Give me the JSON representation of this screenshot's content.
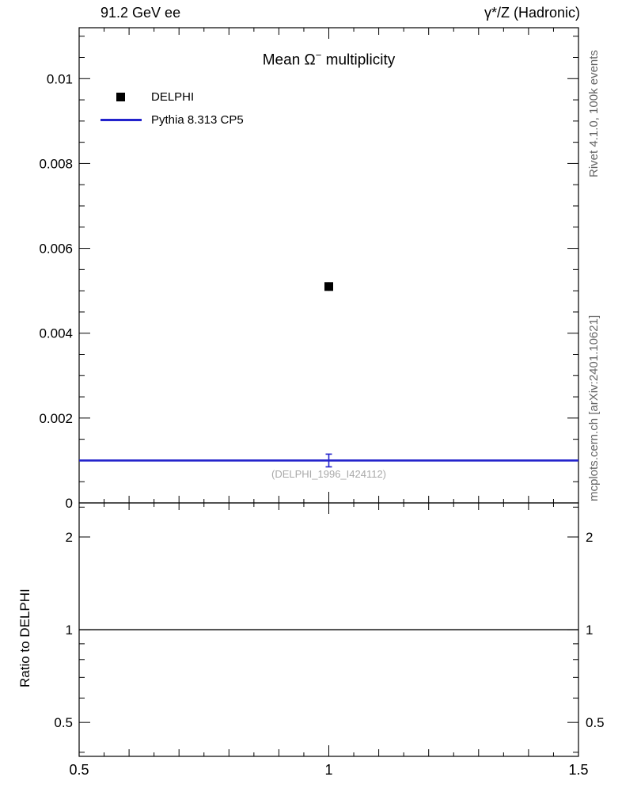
{
  "header": {
    "left": "91.2 GeV ee",
    "right": "γ*/Z (Hadronic)"
  },
  "main_panel": {
    "title_prefix": "Mean Ω",
    "title_sup": "−",
    "title_suffix": " multiplicity",
    "watermark": "(DELPHI_1996_I424112)",
    "legend": [
      {
        "label": "DELPHI"
      },
      {
        "label": "Pythia 8.313 CP5"
      }
    ]
  },
  "ratio_panel": {
    "ylabel": "Ratio to DELPHI"
  },
  "sidebar_right": {
    "top": "Rivet 4.1.0, 100k events",
    "bottom": "mcplots.cern.ch [arXiv:2401.10621]"
  },
  "chart_data": {
    "type": "scatter",
    "title": "Mean Ω⁻ multiplicity",
    "xlabel": "",
    "xlim": [
      0.5,
      1.5
    ],
    "xticks": {
      "major_values": [
        0.5,
        1,
        1.5
      ],
      "major_labels": [
        "0.5",
        "1",
        "1.5"
      ],
      "medium_step": 0.1,
      "minor_step": 0.05
    },
    "main": {
      "ylim": [
        0,
        0.0112
      ],
      "yticks": {
        "major_values": [
          0,
          0.002,
          0.004,
          0.006,
          0.008,
          0.01
        ],
        "major_labels": [
          "0",
          "0.002",
          "0.004",
          "0.006",
          "0.008",
          "0.01"
        ],
        "minor_step": 0.0005
      },
      "series": [
        {
          "name": "DELPHI",
          "type": "points",
          "color": "#000000",
          "marker": "filled-square",
          "marker_size": 11,
          "points": [
            {
              "x": 1,
              "y": 0.0051,
              "yerr": 0.0001
            }
          ]
        },
        {
          "name": "Pythia 8.313 CP5",
          "type": "line",
          "color": "#2222cc",
          "line_width": 2.6,
          "x": [
            0.5,
            1.5
          ],
          "y": [
            0.001,
            0.001
          ],
          "error_points": [
            {
              "x": 1,
              "y": 0.001,
              "yerr": 0.00015
            }
          ]
        }
      ]
    },
    "ratio": {
      "ylabel": "Ratio to DELPHI",
      "yscale": "log",
      "ylim": [
        0.388,
        2.58
      ],
      "yticks": {
        "major_values": [
          0.5,
          1,
          2
        ],
        "major_labels": [
          "0.5",
          "1",
          "2"
        ],
        "minor_values": [
          0.4,
          0.6,
          0.7,
          0.8,
          0.9,
          2.5
        ]
      },
      "reference_line_y": 1
    }
  }
}
